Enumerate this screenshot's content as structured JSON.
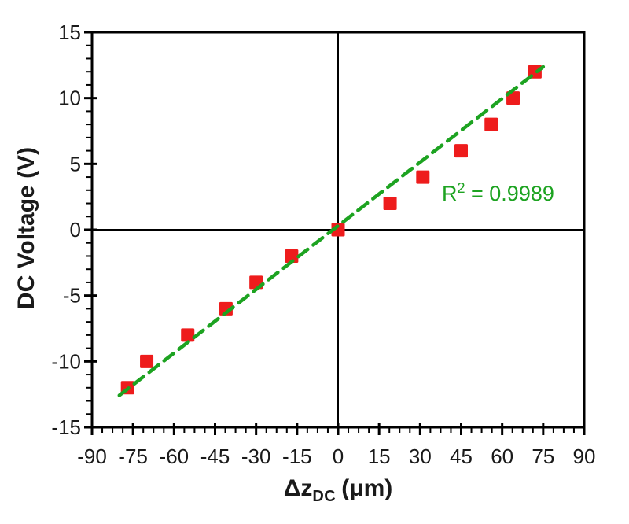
{
  "chart_data": {
    "type": "scatter",
    "xlabel": {
      "main": "Δz",
      "sub": "DC",
      "unit": "(μm)"
    },
    "ylabel": "DC Voltage (V)",
    "x_range": [
      -90,
      90
    ],
    "y_range": [
      -15,
      15
    ],
    "x_major_ticks": [
      -90,
      -75,
      -60,
      -45,
      -30,
      -15,
      0,
      15,
      30,
      45,
      60,
      75,
      90
    ],
    "y_major_ticks": [
      15,
      10,
      5,
      0,
      -5,
      -10,
      -15
    ],
    "x_minor_ticks_between_major": 3,
    "y_minor_ticks_between_major": 4,
    "grid": false,
    "zero_lines": true,
    "legend": "none",
    "series": [
      {
        "name": "measured-points",
        "marker": "square",
        "points": [
          [
            -77,
            -12
          ],
          [
            -70,
            -10
          ],
          [
            -55,
            -8
          ],
          [
            -41,
            -6
          ],
          [
            -30,
            -4
          ],
          [
            -17,
            -2
          ],
          [
            0,
            0
          ],
          [
            19,
            2
          ],
          [
            31,
            4
          ],
          [
            45,
            6
          ],
          [
            56,
            8
          ],
          [
            64,
            10
          ],
          [
            72,
            12
          ]
        ]
      }
    ],
    "trendline": {
      "type": "linear",
      "style": "dashed",
      "slope": 0.161,
      "intercept": 0.3,
      "x_start": -80,
      "x_end": 75
    },
    "annotation": {
      "prefix": "R",
      "sup": "2",
      "rest": " = 0.9989"
    },
    "colors": {
      "marker": "#ee1c1c",
      "trendline": "#1da321",
      "annotation": "#1da321",
      "axis": "#000000",
      "text": "#1a1a1a"
    }
  }
}
